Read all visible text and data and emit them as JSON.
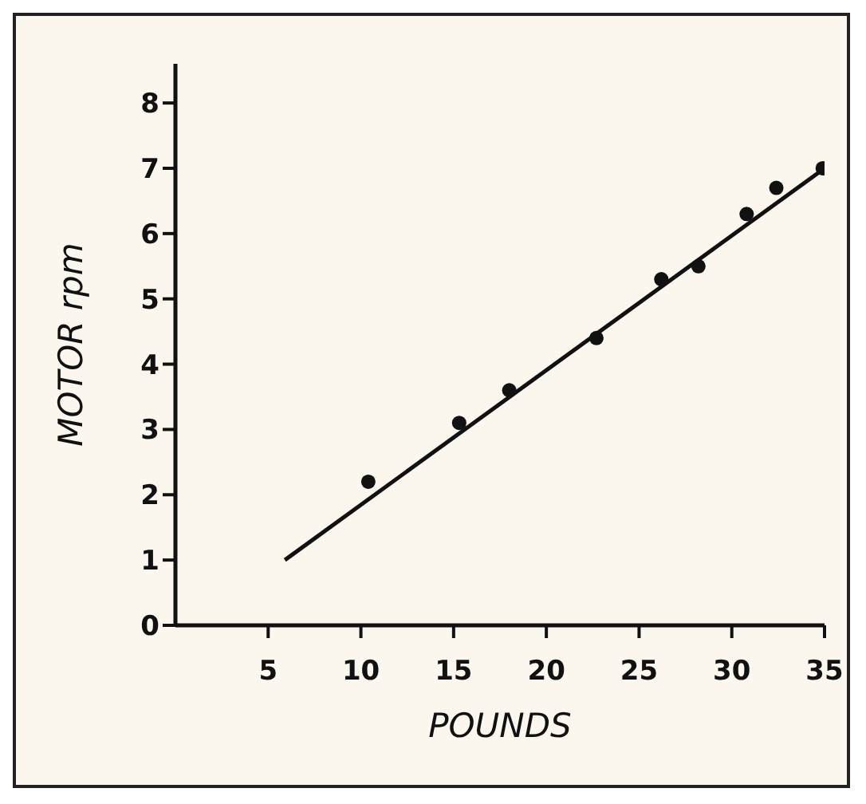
{
  "chart_data": {
    "type": "scatter",
    "xlabel": "POUNDS",
    "ylabel": "MOTOR rpm",
    "xlim": [
      0,
      35
    ],
    "xticks": [
      5,
      10,
      15,
      20,
      25,
      30,
      35
    ],
    "ylim": [
      0,
      8.6
    ],
    "yticks": [
      0,
      1,
      2,
      3,
      4,
      5,
      6,
      7,
      8
    ],
    "grid": false,
    "series": [
      {
        "color": "#111111",
        "marker": "circle",
        "x": [
          10.4,
          15.3,
          18.0,
          22.7,
          26.2,
          28.2,
          30.8,
          32.4,
          34.9
        ],
        "values": [
          2.2,
          3.1,
          3.6,
          4.4,
          5.3,
          5.5,
          6.3,
          6.7,
          7.0
        ]
      },
      {
        "type": "line",
        "color": "#111111",
        "marker": "none",
        "line_style": "solid",
        "x": [
          5.9,
          35
        ],
        "values": [
          1.0,
          7.0
        ]
      }
    ]
  }
}
